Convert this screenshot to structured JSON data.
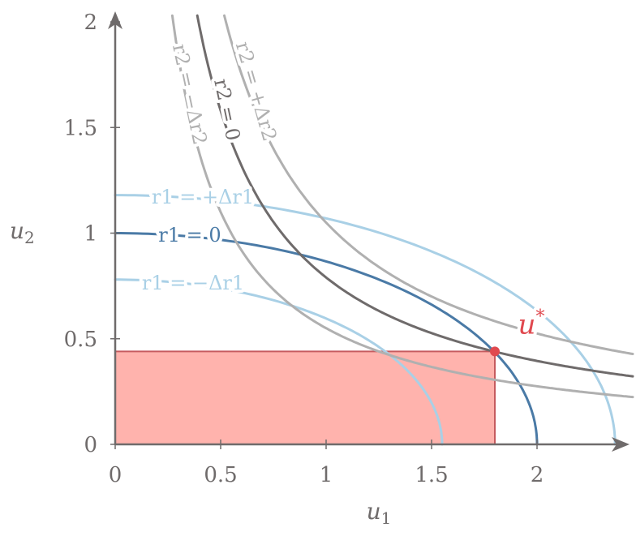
{
  "colors": {
    "axis": "#6f6b6b",
    "r1": "#4a7aa6",
    "r1_offset": "#a9d0e6",
    "r2": "#6f6b6b",
    "r2_offset": "#b0b0b0",
    "rect_fill": "#ffb3ad",
    "rect_stroke": "#c65b5f",
    "point": "#e0494f",
    "background": "#ffffff"
  },
  "chart_data": {
    "type": "line",
    "xlabel": "u1",
    "ylabel": "u2",
    "xlim": [
      0,
      2.45
    ],
    "ylim": [
      0,
      2
    ],
    "xticks": [
      {
        "value": 0,
        "label": "0"
      },
      {
        "value": 0.5,
        "label": "0.5"
      },
      {
        "value": 1,
        "label": "1"
      },
      {
        "value": 1.5,
        "label": "1.5"
      },
      {
        "value": 2,
        "label": "2"
      }
    ],
    "yticks": [
      {
        "value": 0,
        "label": "0"
      },
      {
        "value": 0.5,
        "label": "0.5"
      },
      {
        "value": 1,
        "label": "1"
      },
      {
        "value": 1.5,
        "label": "1.5"
      },
      {
        "value": 2,
        "label": "2"
      }
    ],
    "curves": [
      {
        "id": "r1_neg",
        "label": "r1 = −Δr1",
        "kind": "ellipse",
        "a": 1.55,
        "b": 0.78,
        "color_key": "r1_offset"
      },
      {
        "id": "r1_zero",
        "label": "r1 = 0",
        "kind": "ellipse",
        "a": 2.0,
        "b": 1.0,
        "color_key": "r1"
      },
      {
        "id": "r1_pos",
        "label": "r1 = +Δr1",
        "kind": "ellipse",
        "a": 2.37,
        "b": 1.18,
        "color_key": "r1_offset"
      },
      {
        "id": "r2_neg",
        "label": "r2 = −Δr2",
        "kind": "hyperbola",
        "k": 0.55,
        "color_key": "r2_offset"
      },
      {
        "id": "r2_zero",
        "label": "r2 = 0",
        "kind": "hyperbola",
        "k": 0.79,
        "color_key": "r2"
      },
      {
        "id": "r2_pos",
        "label": "r2 = +Δr2",
        "kind": "hyperbola",
        "k": 1.05,
        "color_key": "r2_offset"
      }
    ],
    "point": {
      "label": "u*",
      "x": 1.8,
      "y": 0.44
    },
    "rectangle": {
      "x": [
        0,
        1.8
      ],
      "y": [
        0,
        0.44
      ]
    }
  }
}
